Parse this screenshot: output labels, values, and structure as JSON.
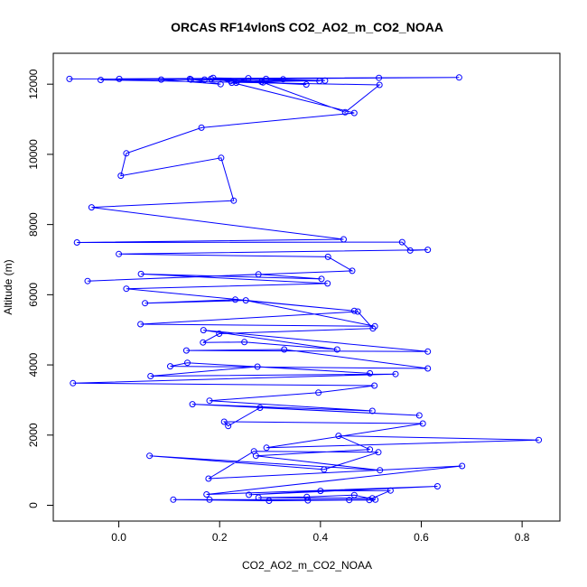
{
  "chart_data": {
    "type": "line",
    "title": "ORCAS RF14vlonS CO2_AO2_m_CO2_NOAA",
    "xlabel": "CO2_AO2_m_CO2_NOAA",
    "ylabel": "Altitude (m)",
    "xlim": [
      -0.13,
      0.875
    ],
    "ylim": [
      -450,
      12880
    ],
    "x_ticks": [
      0.0,
      0.2,
      0.4,
      0.6,
      0.8
    ],
    "x_tick_labels": [
      "0.0",
      "0.2",
      "0.4",
      "0.6",
      "0.8"
    ],
    "y_ticks": [
      0,
      2000,
      4000,
      6000,
      8000,
      10000,
      12000
    ],
    "y_tick_labels": [
      "0",
      "2000",
      "4000",
      "6000",
      "8000",
      "10000",
      "12000"
    ],
    "grid": false,
    "legend": "none",
    "marker": "open-circle",
    "series": [
      {
        "color": "#0000ff",
        "x": [
          -0.098,
          0.675,
          -0.036,
          0.517,
          0.449,
          0.286,
          0.17,
          0.001,
          0.143,
          0.398,
          0.257,
          0.224,
          0.233,
          0.326,
          0.292,
          0.084,
          0.202,
          0.141,
          0.516,
          0.183,
          0.372,
          0.222,
          0.283,
          0.409,
          0.187,
          0.467,
          0.164,
          0.015,
          0.004,
          0.203,
          0.228,
          -0.054,
          0.446,
          -0.083,
          0.562,
          0.578,
          0.613,
          0.0,
          0.415,
          0.463,
          -0.062,
          0.277,
          0.402,
          0.044,
          0.414,
          0.015,
          0.467,
          0.231,
          0.052,
          0.252,
          0.508,
          0.043,
          0.474,
          0.504,
          0.199,
          0.167,
          0.249,
          0.433,
          0.168,
          0.613,
          0.134,
          0.328,
          0.613,
          0.102,
          0.136,
          0.498,
          0.275,
          0.063,
          0.549,
          -0.091,
          0.507,
          0.396,
          0.18,
          0.503,
          0.146,
          0.596,
          0.28,
          0.217,
          0.209,
          0.603,
          0.293,
          0.833,
          0.436,
          0.498,
          0.272,
          0.518,
          0.061,
          0.407,
          0.515,
          0.268,
          0.178,
          0.681,
          0.174,
          0.632,
          0.258,
          0.4,
          0.539,
          0.503,
          0.277,
          0.373,
          0.467,
          0.509,
          0.108,
          0.298,
          0.375,
          0.457,
          0.497,
          0.18
        ],
        "y": [
          12150,
          12190,
          12120,
          11980,
          11200,
          12050,
          12130,
          12150,
          12130,
          12090,
          12170,
          12040,
          12040,
          12140,
          12150,
          12130,
          12000,
          12150,
          12180,
          12150,
          11990,
          12090,
          12070,
          12100,
          12180,
          11180,
          10760,
          10030,
          9390,
          9900,
          8680,
          8490,
          7580,
          7490,
          7500,
          7260,
          7280,
          7160,
          7080,
          6680,
          6390,
          6580,
          6450,
          6590,
          6320,
          6170,
          5540,
          5860,
          5760,
          5840,
          5100,
          5160,
          5520,
          5040,
          4890,
          4640,
          4650,
          4440,
          4990,
          4380,
          4410,
          4440,
          3900,
          3960,
          4060,
          3760,
          3950,
          3680,
          3740,
          3480,
          3410,
          3210,
          2980,
          2690,
          2880,
          2560,
          2780,
          2260,
          2380,
          2330,
          1640,
          1860,
          1980,
          1590,
          1410,
          1000,
          1410,
          1020,
          1510,
          1540,
          760,
          1120,
          310,
          540,
          300,
          410,
          420,
          200,
          220,
          240,
          290,
          160,
          160,
          130,
          140,
          150,
          150,
          160
        ]
      }
    ]
  }
}
